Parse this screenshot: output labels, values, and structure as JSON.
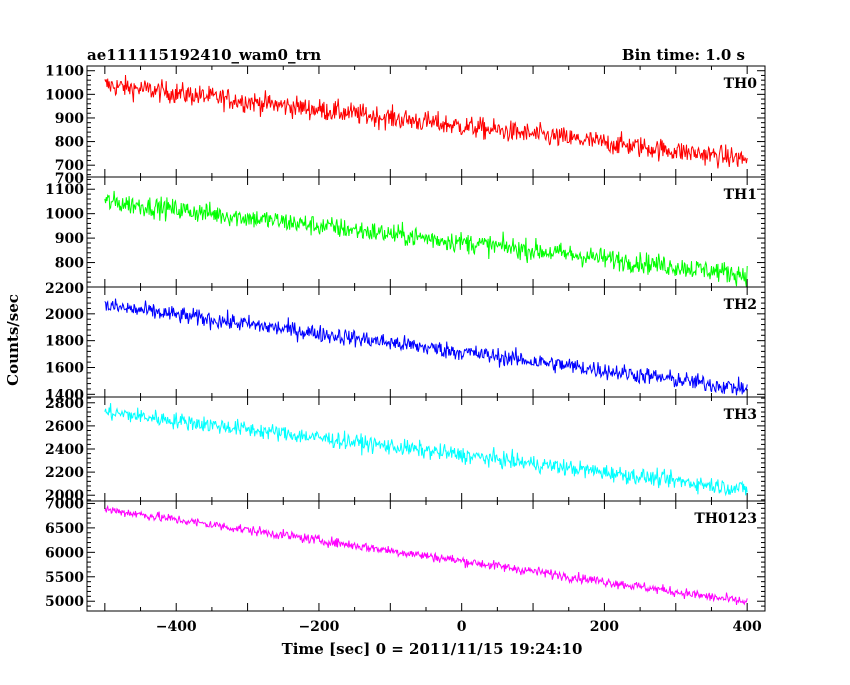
{
  "chart_data": {
    "type": "line",
    "title": "ae111115192410_wam0_trn",
    "subtitle": "Bin time: 1.0 s",
    "xlabel": "Time [sec] 0 = 2011/11/15 19:24:10",
    "ylabel": "Counts/sec",
    "xlim": [
      -525,
      425
    ],
    "x_ticks": [
      -400,
      -200,
      0,
      200,
      400
    ],
    "x_tick_labels": [
      "−400",
      "−200",
      "0",
      "200",
      "400"
    ],
    "x_range": [
      -500,
      400
    ],
    "grid": false,
    "panels": [
      {
        "name": "TH0",
        "color": "#ff0000",
        "ylim": [
          650,
          1120
        ],
        "y_ticks": [
          700,
          800,
          900,
          1000,
          1100
        ],
        "start": 1040,
        "end": 725,
        "noise": 32
      },
      {
        "name": "TH1",
        "color": "#00ff00",
        "ylim": [
          700,
          1150
        ],
        "y_ticks": [
          800,
          900,
          1000,
          1100
        ],
        "y_tick_labels": [
          "800",
          "900",
          "1000",
          "1100"
        ],
        "top_tick_label": "700",
        "start": 1050,
        "end": 750,
        "noise": 30
      },
      {
        "name": "TH2",
        "color": "#0000ff",
        "ylim": [
          1380,
          2200
        ],
        "y_ticks": [
          1400,
          1600,
          1800,
          2000
        ],
        "top_tick_label": "2200",
        "start": 2060,
        "end": 1440,
        "noise": 45
      },
      {
        "name": "TH3",
        "color": "#00ffff",
        "ylim": [
          1950,
          2850
        ],
        "y_ticks": [
          2000,
          2200,
          2400,
          2600,
          2800
        ],
        "start": 2720,
        "end": 2050,
        "noise": 50
      },
      {
        "name": "TH0123",
        "color": "#ff00ff",
        "ylim": [
          4800,
          7050
        ],
        "y_ticks": [
          5000,
          5500,
          6000,
          6500,
          7000
        ],
        "start": 6880,
        "end": 4980,
        "noise": 70
      }
    ]
  }
}
